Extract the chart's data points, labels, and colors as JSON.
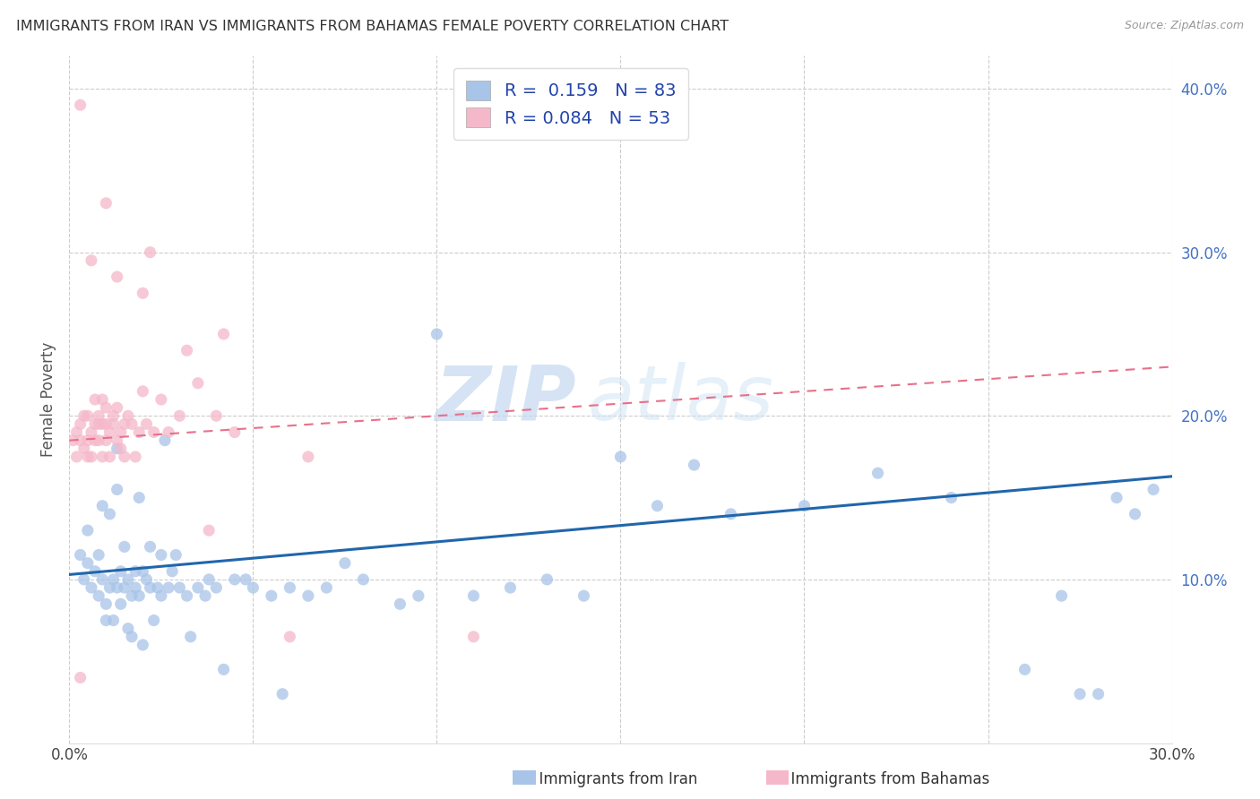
{
  "title": "IMMIGRANTS FROM IRAN VS IMMIGRANTS FROM BAHAMAS FEMALE POVERTY CORRELATION CHART",
  "source": "Source: ZipAtlas.com",
  "ylabel": "Female Poverty",
  "xlim": [
    0.0,
    0.3
  ],
  "ylim": [
    0.0,
    0.42
  ],
  "xticks": [
    0.0,
    0.05,
    0.1,
    0.15,
    0.2,
    0.25,
    0.3
  ],
  "yticks_right": [
    0.1,
    0.2,
    0.3,
    0.4
  ],
  "ytick_labels_right": [
    "10.0%",
    "20.0%",
    "30.0%",
    "40.0%"
  ],
  "legend_iran_R": "0.159",
  "legend_iran_N": "83",
  "legend_bahamas_R": "0.084",
  "legend_bahamas_N": "53",
  "iran_color": "#a8c4e8",
  "bahamas_color": "#f5b8ca",
  "iran_line_color": "#2166ac",
  "bahamas_line_color": "#e8708a",
  "watermark_zip": "ZIP",
  "watermark_atlas": "atlas",
  "iran_scatter_x": [
    0.003,
    0.004,
    0.005,
    0.005,
    0.006,
    0.007,
    0.008,
    0.008,
    0.009,
    0.009,
    0.01,
    0.01,
    0.011,
    0.011,
    0.012,
    0.012,
    0.013,
    0.013,
    0.013,
    0.014,
    0.014,
    0.015,
    0.015,
    0.016,
    0.016,
    0.017,
    0.017,
    0.018,
    0.018,
    0.019,
    0.019,
    0.02,
    0.02,
    0.021,
    0.022,
    0.022,
    0.023,
    0.024,
    0.025,
    0.025,
    0.026,
    0.027,
    0.028,
    0.029,
    0.03,
    0.032,
    0.033,
    0.035,
    0.037,
    0.038,
    0.04,
    0.042,
    0.045,
    0.048,
    0.05,
    0.055,
    0.058,
    0.06,
    0.065,
    0.07,
    0.075,
    0.08,
    0.09,
    0.095,
    0.1,
    0.11,
    0.12,
    0.13,
    0.14,
    0.15,
    0.16,
    0.17,
    0.18,
    0.2,
    0.22,
    0.24,
    0.26,
    0.27,
    0.275,
    0.28,
    0.285,
    0.29,
    0.295
  ],
  "iran_scatter_y": [
    0.115,
    0.1,
    0.11,
    0.13,
    0.095,
    0.105,
    0.09,
    0.115,
    0.145,
    0.1,
    0.085,
    0.075,
    0.095,
    0.14,
    0.1,
    0.075,
    0.095,
    0.155,
    0.18,
    0.105,
    0.085,
    0.095,
    0.12,
    0.07,
    0.1,
    0.09,
    0.065,
    0.105,
    0.095,
    0.09,
    0.15,
    0.105,
    0.06,
    0.1,
    0.095,
    0.12,
    0.075,
    0.095,
    0.115,
    0.09,
    0.185,
    0.095,
    0.105,
    0.115,
    0.095,
    0.09,
    0.065,
    0.095,
    0.09,
    0.1,
    0.095,
    0.045,
    0.1,
    0.1,
    0.095,
    0.09,
    0.03,
    0.095,
    0.09,
    0.095,
    0.11,
    0.1,
    0.085,
    0.09,
    0.25,
    0.09,
    0.095,
    0.1,
    0.09,
    0.175,
    0.145,
    0.17,
    0.14,
    0.145,
    0.165,
    0.15,
    0.045,
    0.09,
    0.03,
    0.03,
    0.15,
    0.14,
    0.155
  ],
  "bahamas_scatter_x": [
    0.001,
    0.002,
    0.002,
    0.003,
    0.003,
    0.004,
    0.004,
    0.005,
    0.005,
    0.005,
    0.006,
    0.006,
    0.007,
    0.007,
    0.007,
    0.008,
    0.008,
    0.008,
    0.009,
    0.009,
    0.009,
    0.01,
    0.01,
    0.01,
    0.011,
    0.011,
    0.012,
    0.012,
    0.013,
    0.013,
    0.014,
    0.014,
    0.015,
    0.015,
    0.016,
    0.017,
    0.018,
    0.019,
    0.02,
    0.021,
    0.023,
    0.025,
    0.027,
    0.03,
    0.032,
    0.035,
    0.038,
    0.04,
    0.042,
    0.045,
    0.06,
    0.065,
    0.11
  ],
  "bahamas_scatter_y": [
    0.185,
    0.175,
    0.19,
    0.195,
    0.185,
    0.2,
    0.18,
    0.185,
    0.2,
    0.175,
    0.19,
    0.175,
    0.195,
    0.185,
    0.21,
    0.185,
    0.195,
    0.2,
    0.175,
    0.195,
    0.21,
    0.195,
    0.185,
    0.205,
    0.175,
    0.19,
    0.195,
    0.2,
    0.185,
    0.205,
    0.19,
    0.18,
    0.195,
    0.175,
    0.2,
    0.195,
    0.175,
    0.19,
    0.215,
    0.195,
    0.19,
    0.21,
    0.19,
    0.2,
    0.24,
    0.22,
    0.13,
    0.2,
    0.25,
    0.19,
    0.065,
    0.175,
    0.065
  ],
  "bahamas_outlier_x": [
    0.003,
    0.006,
    0.01,
    0.013,
    0.02,
    0.022,
    0.003
  ],
  "bahamas_outlier_y": [
    0.39,
    0.295,
    0.33,
    0.285,
    0.275,
    0.3,
    0.04
  ]
}
